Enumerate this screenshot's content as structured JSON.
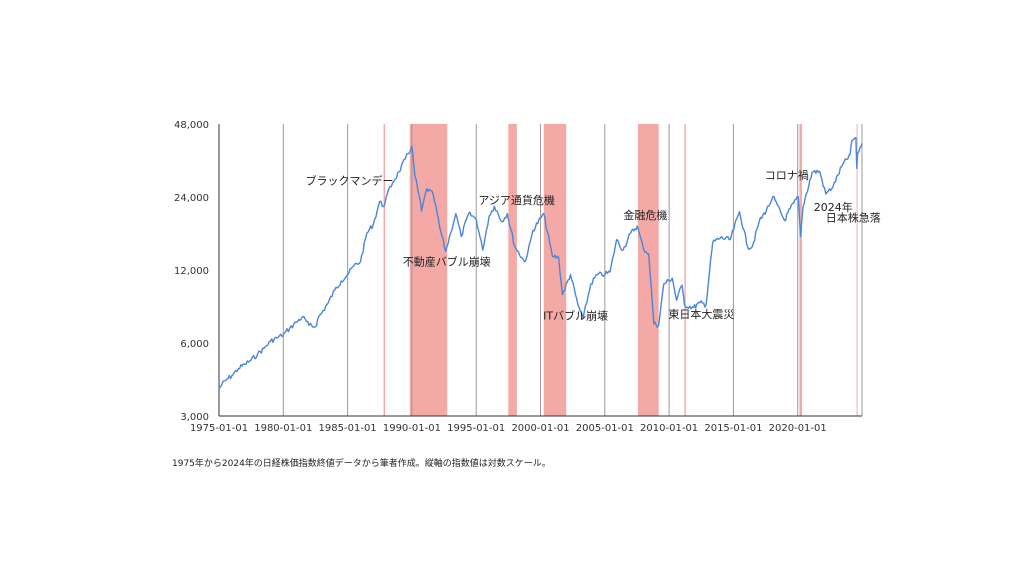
{
  "chart_data": {
    "type": "line",
    "xlabel": "",
    "ylabel": "",
    "y_scale": "log",
    "ylim": [
      3000,
      48000
    ],
    "y_ticks": [
      {
        "value": 3000,
        "label": "3,000"
      },
      {
        "value": 6000,
        "label": "6,000"
      },
      {
        "value": 12000,
        "label": "12,000"
      },
      {
        "value": 24000,
        "label": "24,000"
      },
      {
        "value": 48000,
        "label": "48,000"
      }
    ],
    "xlim": [
      "1975-01-01",
      "2024-12-31"
    ],
    "x_ticks": [
      "1975-01-01",
      "1980-01-01",
      "1985-01-01",
      "1990-01-01",
      "1995-01-01",
      "2000-01-01",
      "2005-01-01",
      "2010-01-01",
      "2015-01-01",
      "2020-01-01"
    ],
    "grid": "vertical",
    "series_color": "#4a86d8",
    "shade_color": "#f4a9a6",
    "series": [
      {
        "x": [
          "1975-01-01",
          "1975-07-01",
          "1976-01-01",
          "1976-07-01",
          "1977-01-01",
          "1977-07-01",
          "1978-01-01",
          "1978-07-01",
          "1979-01-01",
          "1979-07-01",
          "1980-01-01",
          "1980-07-01",
          "1981-01-01",
          "1981-07-01",
          "1982-01-01",
          "1982-07-01",
          "1982-10-01",
          "1983-01-01",
          "1983-07-01",
          "1984-01-01",
          "1984-07-01",
          "1985-01-01",
          "1985-07-01",
          "1986-01-01",
          "1986-07-01",
          "1987-01-01",
          "1987-07-01",
          "1987-10-20",
          "1988-01-01",
          "1988-07-01",
          "1989-01-01",
          "1989-07-01",
          "1989-12-29",
          "1990-04-01",
          "1990-08-01",
          "1990-10-01",
          "1991-03-01",
          "1991-09-01",
          "1992-03-01",
          "1992-08-18",
          "1993-01-01",
          "1993-06-01",
          "1993-11-01",
          "1994-06-01",
          "1995-01-01",
          "1995-07-03",
          "1996-01-01",
          "1996-06-01",
          "1997-01-01",
          "1997-06-01",
          "1998-01-01",
          "1998-10-01",
          "1999-01-01",
          "1999-06-01",
          "2000-04-01",
          "2000-12-01",
          "2001-06-01",
          "2001-09-15",
          "2002-05-01",
          "2002-12-01",
          "2003-04-28",
          "2003-12-01",
          "2004-06-01",
          "2005-01-01",
          "2005-06-01",
          "2005-12-01",
          "2006-06-01",
          "2007-01-01",
          "2007-07-09",
          "2008-01-01",
          "2008-06-01",
          "2008-10-27",
          "2009-03-10",
          "2009-08-01",
          "2010-04-01",
          "2010-08-01",
          "2011-01-01",
          "2011-03-15",
          "2011-11-25",
          "2012-06-01",
          "2012-11-14",
          "2013-05-22",
          "2013-12-30",
          "2014-10-01",
          "2015-06-24",
          "2016-02-12",
          "2016-06-24",
          "2017-01-01",
          "2017-10-01",
          "2018-01-23",
          "2018-12-25",
          "2019-06-01",
          "2020-01-17",
          "2020-03-19",
          "2020-06-01",
          "2021-02-16",
          "2021-09-14",
          "2022-03-08",
          "2022-10-01",
          "2023-06-01",
          "2024-02-01",
          "2024-03-22",
          "2024-07-11",
          "2024-08-05",
          "2024-09-01",
          "2024-12-30"
        ],
        "values": [
          3900,
          4200,
          4400,
          4700,
          4900,
          5100,
          5400,
          5700,
          6100,
          6300,
          6500,
          6900,
          7300,
          7700,
          7100,
          7000,
          7700,
          8000,
          8800,
          9900,
          10800,
          11500,
          12500,
          13000,
          17000,
          18500,
          23000,
          21900,
          24000,
          27500,
          30500,
          34500,
          38900,
          29000,
          24000,
          21000,
          26000,
          24500,
          18000,
          14300,
          17000,
          20500,
          16500,
          20500,
          19500,
          14500,
          20000,
          22000,
          19000,
          20500,
          15000,
          13000,
          14000,
          17500,
          20500,
          13700,
          13500,
          9500,
          11500,
          8600,
          7600,
          10500,
          11500,
          11500,
          11800,
          16000,
          14500,
          17000,
          18200,
          14700,
          14000,
          7200,
          7100,
          10500,
          11100,
          9000,
          10400,
          8600,
          8400,
          8800,
          8600,
          15600,
          16300,
          16000,
          20900,
          14900,
          15000,
          19000,
          22000,
          24100,
          19200,
          21500,
          24000,
          16500,
          22000,
          30400,
          30600,
          24700,
          26500,
          32000,
          36000,
          41000,
          42200,
          31500,
          36500,
          39900
        ]
      }
    ],
    "shaded_periods": [
      {
        "start": "1987-10-19",
        "end": "1987-11-30"
      },
      {
        "start": "1989-11-01",
        "end": "1992-10-01"
      },
      {
        "start": "1997-07-01",
        "end": "1998-03-01"
      },
      {
        "start": "2000-04-01",
        "end": "2002-01-01"
      },
      {
        "start": "2007-08-01",
        "end": "2009-03-10"
      },
      {
        "start": "2011-03-11",
        "end": "2011-04-20"
      },
      {
        "start": "2020-02-20",
        "end": "2020-04-30"
      },
      {
        "start": "2024-07-31",
        "end": "2024-08-10"
      }
    ],
    "annotations": [
      {
        "text": "ブラックマンデー",
        "date": "1987-10-19",
        "value": 27500
      },
      {
        "text": "不動産バブル崩壊",
        "date": "1991-01-01",
        "value": 13000
      },
      {
        "text": "アジア通貨危機",
        "date": "1997-07-01",
        "value": 22000
      },
      {
        "text": "ITバブル崩壊",
        "date": "2001-12-01",
        "value": 7500
      },
      {
        "text": "金融危機",
        "date": "2008-01-01",
        "value": 19500
      },
      {
        "text": "東日本大震災",
        "date": "2011-03-11",
        "value": 7600
      },
      {
        "text": "コロナ禍",
        "date": "2020-02-01",
        "value": 28500
      },
      {
        "text": "2024年",
        "date": "2024-08-05",
        "value": 21000
      },
      {
        "text": "日本株急落",
        "date": "2024-08-05",
        "value": 19000
      }
    ]
  },
  "caption": "1975年から2024年の日経株価指数終値データから筆者作成。縦軸の指数値は対数スケール。"
}
